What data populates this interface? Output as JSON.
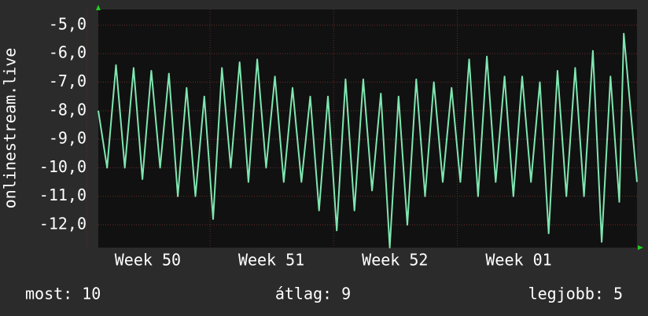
{
  "chart_data": {
    "type": "line",
    "ylabel": "onlinestream.live",
    "x": [
      0,
      0.5,
      1,
      1.5,
      2,
      2.5,
      3,
      3.5,
      4,
      4.5,
      5,
      5.5,
      6,
      6.5,
      7,
      7.5,
      8,
      8.5,
      9,
      9.5,
      10,
      10.5,
      11,
      11.5,
      12,
      12.5,
      13,
      13.5,
      14,
      14.5,
      15,
      15.5,
      16,
      16.5,
      17,
      17.5,
      18,
      18.5,
      19,
      19.5,
      20,
      20.5,
      21,
      21.5,
      22,
      22.5,
      23,
      23.5,
      24,
      24.5,
      25,
      25.5,
      26,
      26.5,
      27,
      27.5,
      28,
      28.5,
      29,
      29.5,
      29.75,
      30.5
    ],
    "series": [
      {
        "name": "onlinestream.live",
        "color": "#7fe6b0",
        "values": [
          -8,
          -10,
          -6.4,
          -10,
          -6.5,
          -10.4,
          -6.6,
          -10,
          -6.7,
          -11,
          -7.2,
          -11,
          -7.5,
          -11.8,
          -6.5,
          -10,
          -6.3,
          -10.5,
          -6.2,
          -10,
          -6.8,
          -10.5,
          -7.2,
          -10.5,
          -7.5,
          -11.5,
          -7.5,
          -12.2,
          -6.9,
          -11.5,
          -6.9,
          -10.8,
          -7.4,
          -12.8,
          -7.5,
          -12,
          -6.9,
          -11,
          -7,
          -10.5,
          -7.2,
          -10.5,
          -6.2,
          -11,
          -6.1,
          -10.5,
          -6.8,
          -11,
          -6.8,
          -10.5,
          -7,
          -12.3,
          -6.6,
          -11,
          -6.5,
          -11,
          -5.9,
          -12.6,
          -6.8,
          -11.2,
          -5.3,
          -10.5
        ]
      }
    ],
    "xlim": [
      0,
      30.5
    ],
    "xticks": [
      {
        "value": 2.8,
        "label": "Week 50"
      },
      {
        "value": 9.8,
        "label": "Week 51"
      },
      {
        "value": 16.8,
        "label": "Week 52"
      },
      {
        "value": 23.8,
        "label": "Week 01"
      }
    ],
    "ylim": [
      -12.8,
      -4.45
    ],
    "yticks": [
      {
        "value": -5,
        "label": "-5,0"
      },
      {
        "value": -6,
        "label": "-6,0"
      },
      {
        "value": -7,
        "label": "-7,0"
      },
      {
        "value": -8,
        "label": "-8,0"
      },
      {
        "value": -9,
        "label": "-9,0"
      },
      {
        "value": -10,
        "label": "-10,0"
      },
      {
        "value": -11,
        "label": "-11,0"
      },
      {
        "value": -12,
        "label": "-12,0"
      }
    ],
    "grid": true,
    "annotations": [
      "most: 10",
      "átlag: 9",
      "legjobb: 5"
    ]
  }
}
